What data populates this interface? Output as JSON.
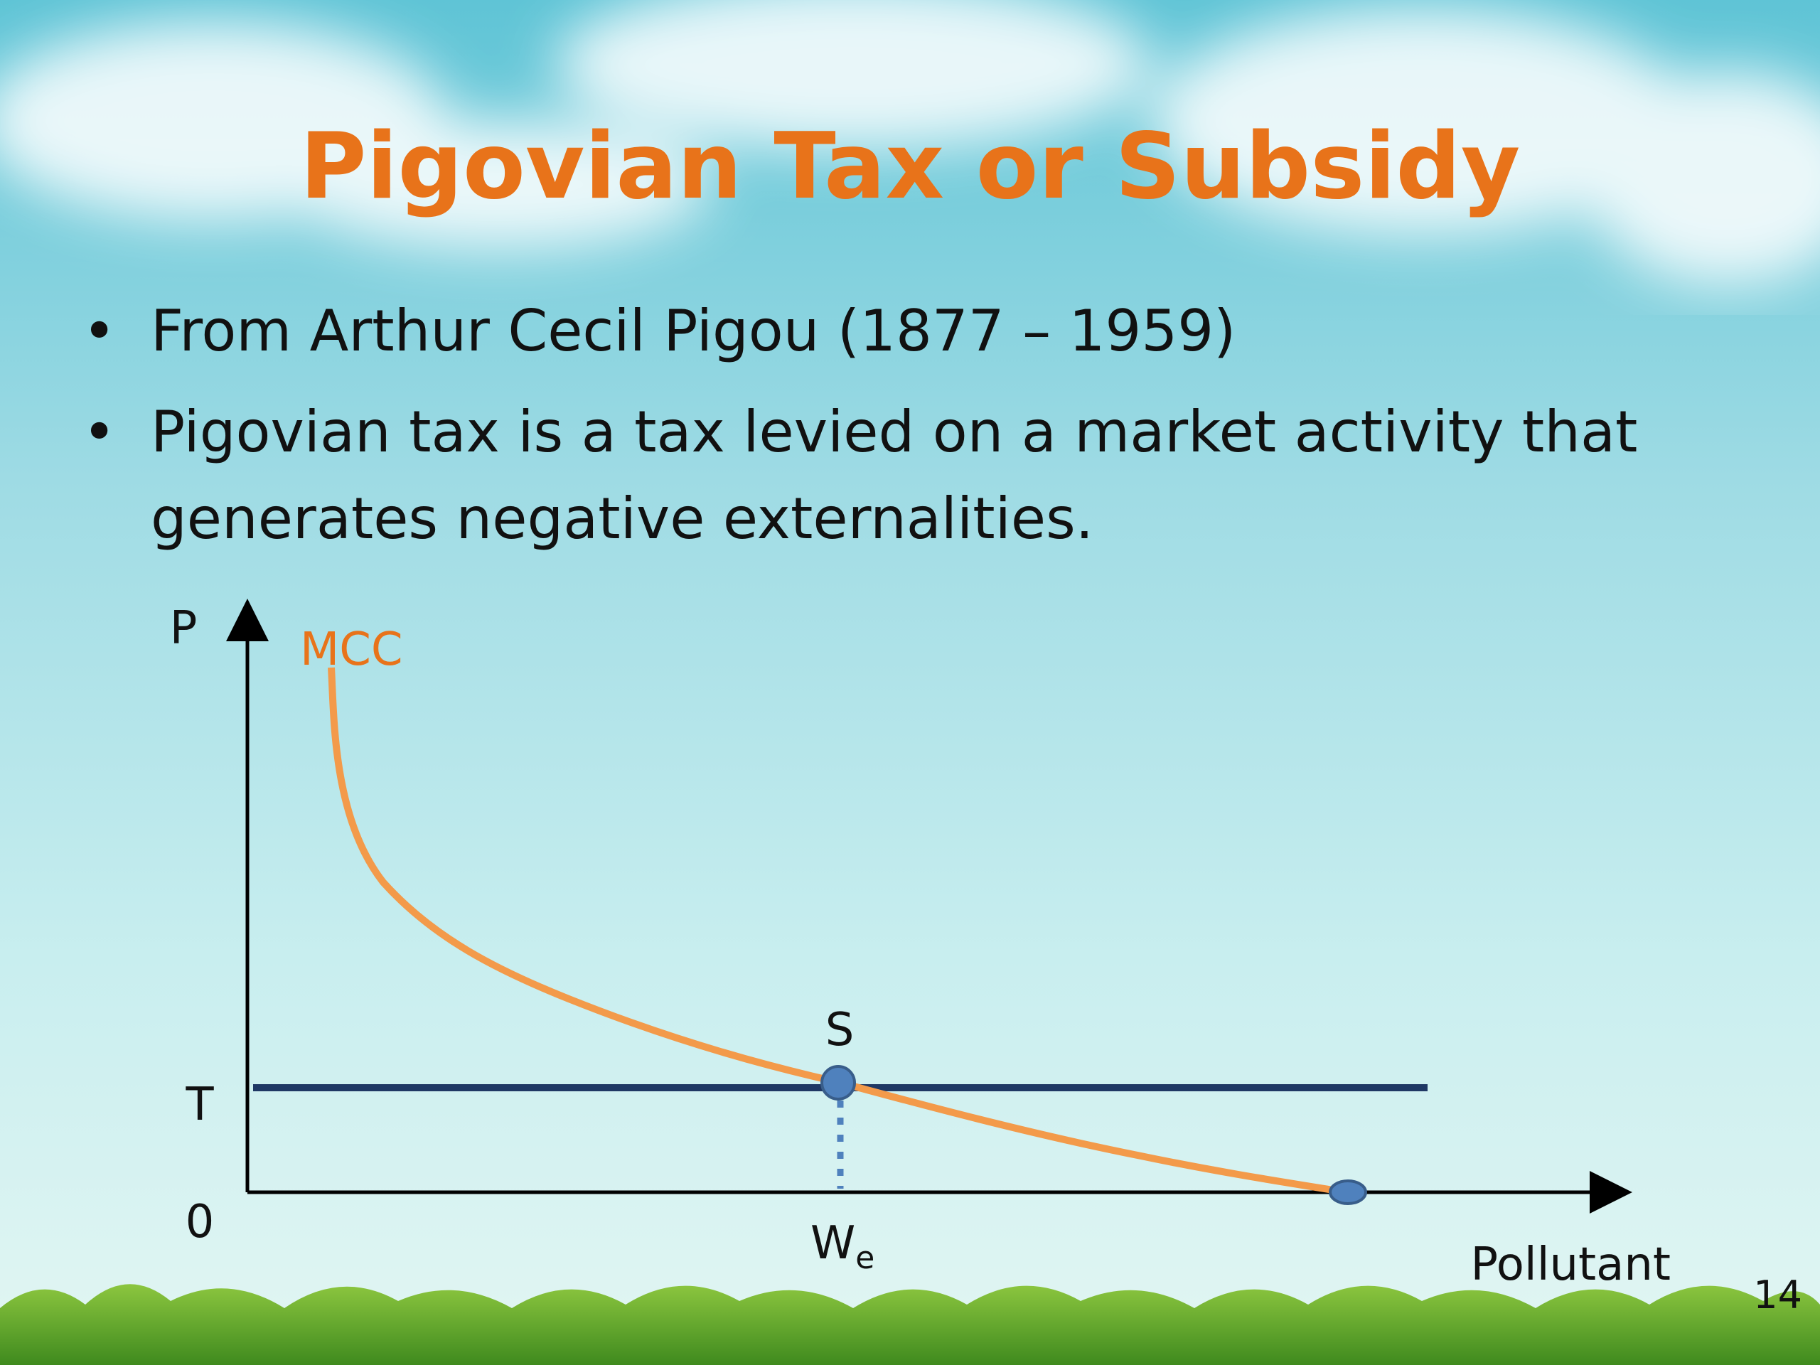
{
  "title": "Pigovian Tax or Subsidy",
  "bullets": [
    "From Arthur Cecil Pigou (1877 – 1959)",
    "Pigovian tax is a tax levied on a market activity that generates negative externalities."
  ],
  "diagram": {
    "y_axis_label": "P",
    "x_axis_label": "Pollutant",
    "curve_label": "MCC",
    "origin_label": "0",
    "tax_label": "T",
    "point_label": "S",
    "x_point_label": {
      "main": "W",
      "sub": "e"
    }
  },
  "page_number": "14"
}
